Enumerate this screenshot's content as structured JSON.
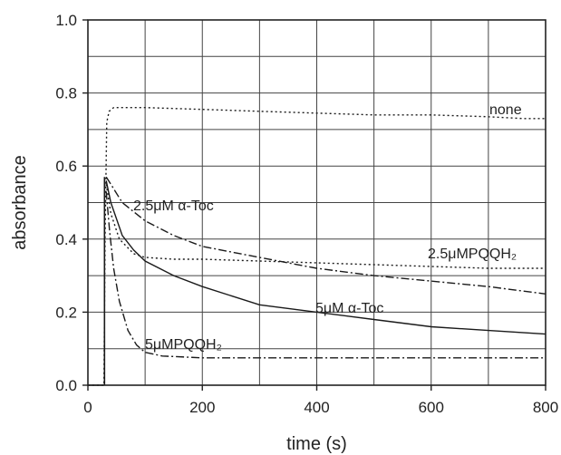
{
  "chart_data": {
    "type": "line",
    "title": "",
    "xlabel": "time (s)",
    "ylabel": "absorbance",
    "xlim": [
      0,
      800
    ],
    "ylim": [
      0.0,
      1.0
    ],
    "x_ticks": [
      "0",
      "200",
      "400",
      "600",
      "800"
    ],
    "y_ticks": [
      "0.0",
      "0.2",
      "0.4",
      "0.6",
      "0.8",
      "1.0"
    ],
    "grid": true,
    "series": [
      {
        "name": "none",
        "style": "dotted",
        "x": [
          0,
          28,
          30,
          33,
          37,
          45,
          60,
          100,
          200,
          300,
          400,
          500,
          600,
          700,
          760,
          800
        ],
        "y": [
          0,
          0,
          0.4,
          0.72,
          0.75,
          0.76,
          0.76,
          0.76,
          0.755,
          0.75,
          0.745,
          0.74,
          0.74,
          0.735,
          0.73,
          0.73
        ]
      },
      {
        "name": "2.5μM α-Toc",
        "style": "dashdot",
        "x": [
          32,
          40,
          60,
          100,
          150,
          200,
          300,
          400,
          500,
          600,
          700,
          800
        ],
        "y": [
          0.57,
          0.55,
          0.5,
          0.45,
          0.41,
          0.38,
          0.35,
          0.32,
          0.3,
          0.285,
          0.27,
          0.25
        ]
      },
      {
        "name": "2.5μMPQQH₂",
        "style": "dotted",
        "x": [
          32,
          40,
          55,
          80,
          100,
          150,
          200,
          300,
          400,
          500,
          600,
          700,
          800
        ],
        "y": [
          0.55,
          0.47,
          0.4,
          0.36,
          0.35,
          0.345,
          0.345,
          0.34,
          0.335,
          0.33,
          0.325,
          0.32,
          0.32
        ]
      },
      {
        "name": "5μM α-Toc",
        "style": "solid",
        "x": [
          32,
          40,
          60,
          80,
          100,
          150,
          200,
          300,
          400,
          500,
          600,
          700,
          800
        ],
        "y": [
          0.56,
          0.5,
          0.41,
          0.37,
          0.34,
          0.3,
          0.27,
          0.22,
          0.2,
          0.18,
          0.16,
          0.15,
          0.14
        ]
      },
      {
        "name": "5μMPQQH₂",
        "style": "dashdot",
        "x": [
          32,
          38,
          45,
          55,
          70,
          85,
          100,
          130,
          200,
          300,
          400,
          500,
          600,
          700,
          800
        ],
        "y": [
          0.53,
          0.42,
          0.32,
          0.23,
          0.15,
          0.11,
          0.09,
          0.08,
          0.075,
          0.075,
          0.075,
          0.075,
          0.075,
          0.075,
          0.075
        ]
      }
    ]
  }
}
